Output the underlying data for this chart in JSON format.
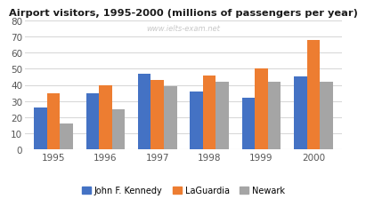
{
  "title": "Airport visitors, 1995-2000 (millions of passengers per year)",
  "watermark": "www.ielts-exam.net",
  "years": [
    1995,
    1996,
    1997,
    1998,
    1999,
    2000
  ],
  "series": {
    "John F. Kennedy": [
      26,
      35,
      47,
      36,
      32,
      45
    ],
    "LaGuardia": [
      35,
      40,
      43,
      46,
      50,
      68
    ],
    "Newark": [
      16,
      25,
      39,
      42,
      42,
      42
    ]
  },
  "colors": {
    "John F. Kennedy": "#4472C4",
    "LaGuardia": "#ED7D31",
    "Newark": "#A5A5A5"
  },
  "ylim": [
    0,
    80
  ],
  "yticks": [
    0,
    10,
    20,
    30,
    40,
    50,
    60,
    70,
    80
  ],
  "legend_labels": [
    "John F. Kennedy",
    "LaGuardia",
    "Newark"
  ],
  "background_color": "#ffffff",
  "grid_color": "#d9d9d9"
}
